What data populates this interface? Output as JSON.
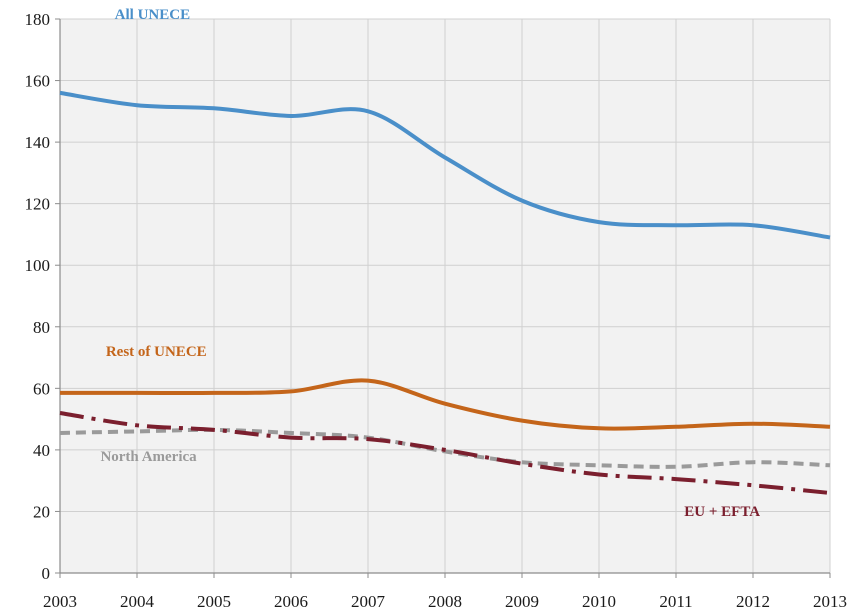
{
  "chart_data": {
    "type": "line",
    "title": "",
    "xlabel": "",
    "ylabel": "",
    "x": [
      2003,
      2004,
      2005,
      2006,
      2007,
      2008,
      2009,
      2010,
      2011,
      2012,
      2013
    ],
    "xlim": [
      2003,
      2013
    ],
    "ylim": [
      0,
      180
    ],
    "yticks": [
      0,
      20,
      40,
      60,
      80,
      100,
      120,
      140,
      160,
      180
    ],
    "grid": true,
    "legend": "inline labels",
    "series": [
      {
        "name": "All UNECE",
        "label_text": "All UNECE",
        "values": [
          156,
          152,
          151,
          148.5,
          150,
          135,
          121,
          114,
          113,
          113,
          109
        ],
        "color": "#4a8fc9",
        "dash": "solid"
      },
      {
        "name": "Rest of UNECE",
        "label_text": "Rest of UNECE",
        "values": [
          58.5,
          58.5,
          58.5,
          59,
          62.5,
          55,
          49.5,
          47,
          47.5,
          48.5,
          47.5
        ],
        "color": "#c4651a",
        "dash": "solid"
      },
      {
        "name": "North America",
        "label_text": "North America",
        "values": [
          45.5,
          46,
          46.5,
          45.5,
          44,
          39.5,
          36,
          35,
          34.5,
          36,
          35
        ],
        "color": "#9a9a9a",
        "dash": "dashed"
      },
      {
        "name": "EU + EFTA",
        "label_text": "EU + EFTA",
        "values": [
          52,
          48,
          46.5,
          44,
          43.5,
          40,
          35.5,
          32,
          30.5,
          28.5,
          26
        ],
        "color": "#7b1f2e",
        "dash": "dash-dot"
      }
    ]
  }
}
